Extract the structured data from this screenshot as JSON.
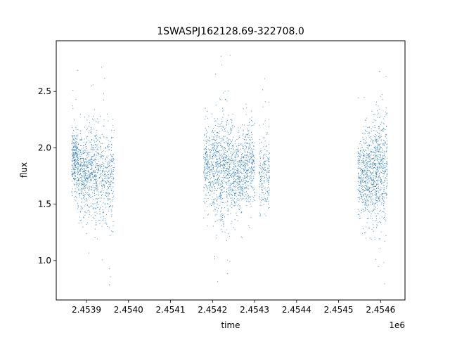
{
  "chart_data": {
    "type": "scatter",
    "title": "1SWASPJ162128.69-322708.0",
    "xlabel": "time",
    "ylabel": "flux",
    "x_offset_label": "1e6",
    "xlim": [
      2453828,
      2454658
    ],
    "ylim": [
      0.65,
      2.95
    ],
    "x_ticks": [
      2453900,
      2454000,
      2454100,
      2454200,
      2454300,
      2454400,
      2454500,
      2454600
    ],
    "x_tick_labels": [
      "2.4539",
      "2.4540",
      "2.4541",
      "2.4542",
      "2.4543",
      "2.4544",
      "2.4545",
      "2.4546"
    ],
    "y_ticks": [
      1.0,
      1.5,
      2.0,
      2.5
    ],
    "y_tick_labels": [
      "1.0",
      "1.5",
      "2.0",
      "2.5"
    ],
    "grid": false,
    "marker_color": "#1f77b4",
    "series": [
      {
        "clusters": [
          {
            "x_start": 2453864,
            "x_end": 2453878,
            "center": 1.9,
            "spread": 0.14,
            "min": 1.23,
            "max": 2.75,
            "n": 260
          },
          {
            "x_start": 2453878,
            "x_end": 2453898,
            "center": 1.77,
            "spread": 0.17,
            "min": 1.3,
            "max": 2.3,
            "n": 300
          },
          {
            "x_start": 2453898,
            "x_end": 2453923,
            "center": 1.78,
            "spread": 0.22,
            "min": 0.85,
            "max": 2.72,
            "n": 340
          },
          {
            "x_start": 2453923,
            "x_end": 2453965,
            "center": 1.76,
            "spread": 0.2,
            "min": 0.78,
            "max": 2.82,
            "n": 420
          },
          {
            "x_start": 2454178,
            "x_end": 2454200,
            "center": 1.82,
            "spread": 0.17,
            "min": 1.3,
            "max": 2.4,
            "n": 260
          },
          {
            "x_start": 2454200,
            "x_end": 2454248,
            "center": 1.83,
            "spread": 0.24,
            "min": 0.78,
            "max": 2.87,
            "n": 700
          },
          {
            "x_start": 2454248,
            "x_end": 2454272,
            "center": 1.76,
            "spread": 0.18,
            "min": 1.2,
            "max": 2.3,
            "n": 300
          },
          {
            "x_start": 2454272,
            "x_end": 2454300,
            "center": 1.84,
            "spread": 0.19,
            "min": 1.2,
            "max": 2.5,
            "n": 340
          },
          {
            "x_start": 2454310,
            "x_end": 2454335,
            "center": 1.76,
            "spread": 0.16,
            "min": 1.4,
            "max": 2.65,
            "n": 220
          },
          {
            "x_start": 2454545,
            "x_end": 2454562,
            "center": 1.74,
            "spread": 0.18,
            "min": 1.2,
            "max": 2.45,
            "n": 220
          },
          {
            "x_start": 2454562,
            "x_end": 2454585,
            "center": 1.76,
            "spread": 0.22,
            "min": 1.0,
            "max": 2.5,
            "n": 380
          },
          {
            "x_start": 2454585,
            "x_end": 2454615,
            "center": 1.83,
            "spread": 0.24,
            "min": 0.76,
            "max": 2.82,
            "n": 500
          }
        ]
      }
    ]
  }
}
